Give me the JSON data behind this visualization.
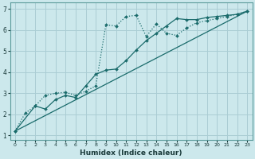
{
  "xlabel": "Humidex (Indice chaleur)",
  "bg_color": "#cce8ec",
  "grid_color": "#aacdd4",
  "line_color": "#1a6b6b",
  "xlim": [
    -0.5,
    23.5
  ],
  "ylim": [
    0.8,
    7.3
  ],
  "xticks": [
    0,
    1,
    2,
    3,
    4,
    5,
    6,
    7,
    8,
    9,
    10,
    11,
    12,
    13,
    14,
    15,
    16,
    17,
    18,
    19,
    20,
    21,
    22,
    23
  ],
  "yticks": [
    1,
    2,
    3,
    4,
    5,
    6,
    7
  ],
  "line1_x": [
    0,
    1,
    2,
    3,
    4,
    5,
    6,
    7,
    8,
    9,
    10,
    11,
    12,
    13,
    14,
    15,
    16,
    17,
    18,
    19,
    20,
    21,
    22,
    23
  ],
  "line1_y": [
    1.2,
    2.05,
    2.4,
    2.9,
    3.0,
    3.05,
    2.9,
    3.1,
    3.35,
    6.25,
    6.2,
    6.65,
    6.7,
    5.7,
    6.3,
    5.85,
    5.75,
    6.1,
    6.35,
    6.45,
    6.55,
    6.65,
    6.75,
    6.9
  ],
  "line2_x": [
    0,
    2,
    3,
    4,
    5,
    6,
    7,
    8,
    9,
    10,
    11,
    12,
    13,
    14,
    15,
    16,
    17,
    18,
    19,
    20,
    21,
    22,
    23
  ],
  "line2_y": [
    1.2,
    2.4,
    2.25,
    2.7,
    2.9,
    2.8,
    3.35,
    3.9,
    4.1,
    4.15,
    4.55,
    5.05,
    5.5,
    5.85,
    6.2,
    6.55,
    6.5,
    6.5,
    6.6,
    6.65,
    6.7,
    6.75,
    6.9
  ],
  "line3_x": [
    0,
    23
  ],
  "line3_y": [
    1.2,
    6.9
  ]
}
